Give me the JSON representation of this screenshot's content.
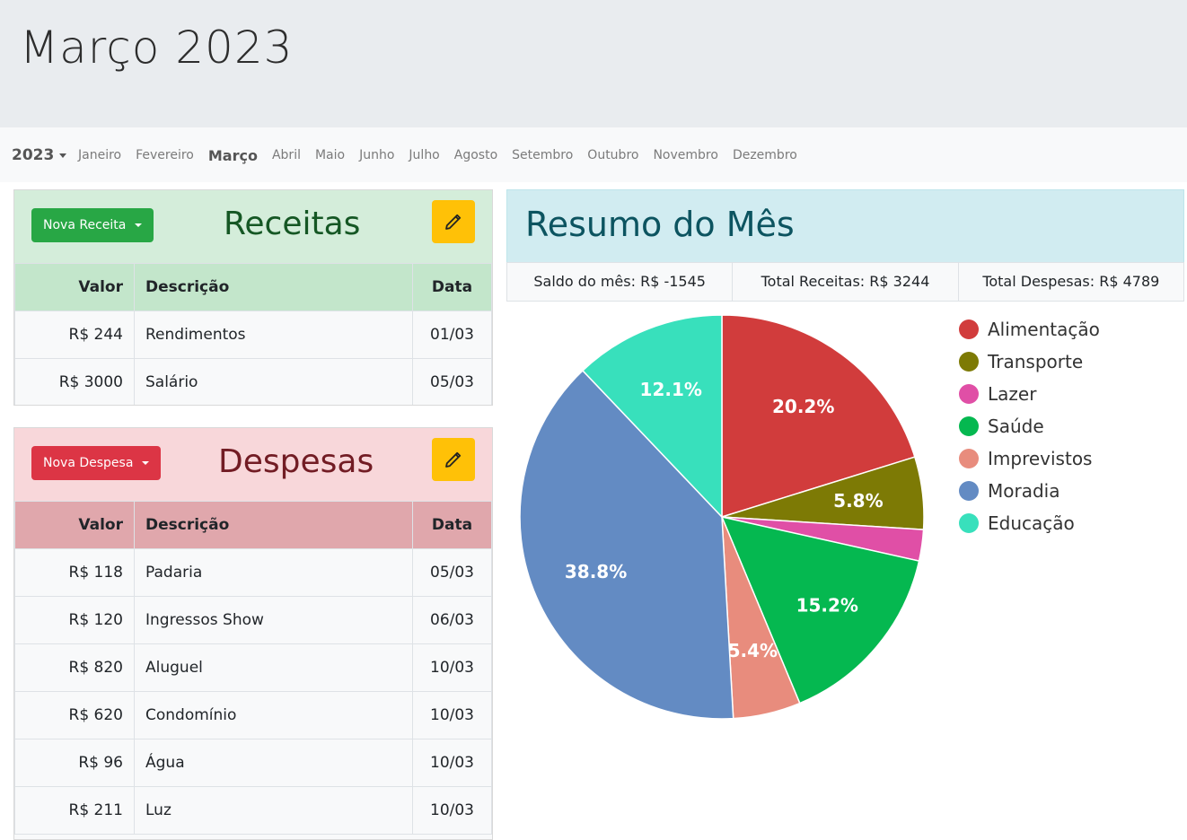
{
  "header": {
    "title": "Março 2023"
  },
  "nav": {
    "year": "2023",
    "months": [
      "Janeiro",
      "Fevereiro",
      "Março",
      "Abril",
      "Maio",
      "Junho",
      "Julho",
      "Agosto",
      "Setembro",
      "Outubro",
      "Novembro",
      "Dezembro"
    ],
    "active_month": "Março"
  },
  "receitas": {
    "button_label": "Nova Receita",
    "title": "Receitas",
    "columns": {
      "valor": "Valor",
      "descricao": "Descrição",
      "data": "Data"
    },
    "rows": [
      {
        "valor": "R$ 244",
        "descricao": "Rendimentos",
        "data": "01/03"
      },
      {
        "valor": "R$ 3000",
        "descricao": "Salário",
        "data": "05/03"
      }
    ]
  },
  "despesas": {
    "button_label": "Nova Despesa",
    "title": "Despesas",
    "columns": {
      "valor": "Valor",
      "descricao": "Descrição",
      "data": "Data"
    },
    "rows": [
      {
        "valor": "R$ 118",
        "descricao": "Padaria",
        "data": "05/03"
      },
      {
        "valor": "R$ 120",
        "descricao": "Ingressos Show",
        "data": "06/03"
      },
      {
        "valor": "R$ 820",
        "descricao": "Aluguel",
        "data": "10/03"
      },
      {
        "valor": "R$ 620",
        "descricao": "Condomínio",
        "data": "10/03"
      },
      {
        "valor": "R$ 96",
        "descricao": "Água",
        "data": "10/03"
      },
      {
        "valor": "R$ 211",
        "descricao": "Luz",
        "data": "10/03"
      }
    ]
  },
  "resumo": {
    "title": "Resumo do Mês",
    "saldo": "Saldo do mês: R$ -1545",
    "total_receitas": "Total Receitas: R$ 3244",
    "total_despesas": "Total Despesas: R$ 4789"
  },
  "chart_data": {
    "type": "pie",
    "categories": [
      "Alimentação",
      "Transporte",
      "Lazer",
      "Saúde",
      "Imprevistos",
      "Moradia",
      "Educação"
    ],
    "values": [
      20.2,
      5.8,
      2.5,
      15.2,
      5.4,
      38.8,
      12.1
    ],
    "labels": [
      "20.2%",
      "5.8%",
      "",
      "15.2%",
      "5.4%",
      "38.8%",
      "12.1%"
    ],
    "colors": [
      "#d13c3c",
      "#7d7a05",
      "#e04fa6",
      "#05b850",
      "#e88c7d",
      "#638bc3",
      "#38e0bc"
    ],
    "legend": "right"
  }
}
